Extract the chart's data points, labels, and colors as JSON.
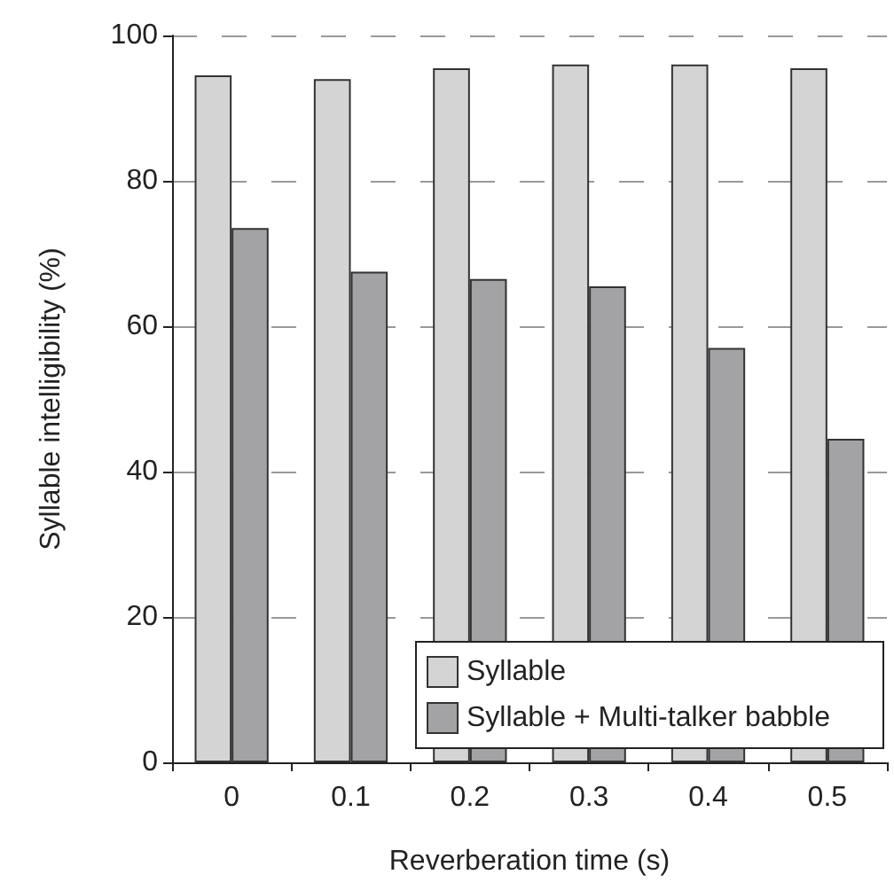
{
  "chart_data": {
    "type": "bar",
    "xlabel": "Reverberation time (s)",
    "ylabel": "Syllable intelligibility (%)",
    "categories": [
      "0",
      "0.1",
      "0.2",
      "0.3",
      "0.4",
      "0.5"
    ],
    "series": [
      {
        "name": "Syllable",
        "color": "#d4d4d4",
        "values": [
          94.5,
          94,
          95.5,
          96,
          96,
          95.5
        ]
      },
      {
        "name": "Syllable + Multi-talker babble",
        "color": "#a3a3a5",
        "values": [
          73.5,
          67.5,
          66.5,
          65.5,
          57,
          44.5
        ]
      }
    ],
    "ylim": [
      0,
      100
    ],
    "yticks": [
      0,
      20,
      40,
      60,
      80,
      100
    ],
    "grid": "y",
    "legend": "bottom right"
  }
}
